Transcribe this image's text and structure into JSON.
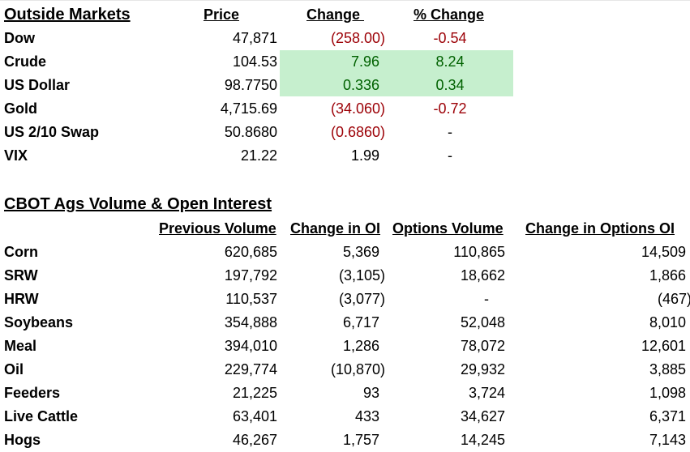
{
  "outside_markets": {
    "title": "Outside Markets",
    "columns": {
      "price": "Price",
      "change": "Change ",
      "pct_change": "% Change"
    },
    "rows": [
      {
        "name": "Dow",
        "price": "47,871",
        "change": "(258.00)",
        "pct": "-0.54"
      },
      {
        "name": "Crude",
        "price": "104.53",
        "change": "7.96",
        "pct": "8.24"
      },
      {
        "name": "US Dollar",
        "price": "98.7750",
        "change": "0.336",
        "pct": "0.34"
      },
      {
        "name": "Gold",
        "price": "4,715.69",
        "change": "(34.060)",
        "pct": "-0.72"
      },
      {
        "name": "US 2/10 Swap",
        "price": "50.8680",
        "change": "(0.6860)",
        "pct": "-"
      },
      {
        "name": "VIX",
        "price": "21.22",
        "change": "1.99",
        "pct": "-"
      }
    ],
    "colors": {
      "negative": "#9c0006",
      "positive": "#006100",
      "highlight_fill": "#c6efce"
    }
  },
  "cbot": {
    "title": "CBOT Ags Volume & Open Interest",
    "columns": {
      "prev_volume": "Previous Volume",
      "change_oi": "Change in OI",
      "options_volume": "Options Volume",
      "change_options_oi": "Change in Options OI"
    },
    "rows": [
      {
        "name": "Corn",
        "prev": "620,685",
        "chg_oi": "5,369",
        "opt_vol": "110,865",
        "chg_opt_oi": "14,509"
      },
      {
        "name": "SRW",
        "prev": "197,792",
        "chg_oi": "(3,105)",
        "opt_vol": "18,662",
        "chg_opt_oi": "1,866"
      },
      {
        "name": "HRW",
        "prev": "110,537",
        "chg_oi": "(3,077)",
        "opt_vol": "-",
        "chg_opt_oi": "(467)"
      },
      {
        "name": "Soybeans",
        "prev": "354,888",
        "chg_oi": "6,717",
        "opt_vol": "52,048",
        "chg_opt_oi": "8,010"
      },
      {
        "name": "Meal",
        "prev": "394,010",
        "chg_oi": "1,286",
        "opt_vol": "78,072",
        "chg_opt_oi": "12,601"
      },
      {
        "name": "Oil",
        "prev": "229,774",
        "chg_oi": "(10,870)",
        "opt_vol": "29,932",
        "chg_opt_oi": "3,885"
      },
      {
        "name": "Feeders",
        "prev": "21,225",
        "chg_oi": "93",
        "opt_vol": "3,724",
        "chg_opt_oi": "1,098"
      },
      {
        "name": "Live Cattle",
        "prev": "63,401",
        "chg_oi": "433",
        "opt_vol": "34,627",
        "chg_opt_oi": "6,371"
      },
      {
        "name": "Hogs",
        "prev": "46,267",
        "chg_oi": "1,757",
        "opt_vol": "14,245",
        "chg_opt_oi": "7,143"
      }
    ]
  }
}
